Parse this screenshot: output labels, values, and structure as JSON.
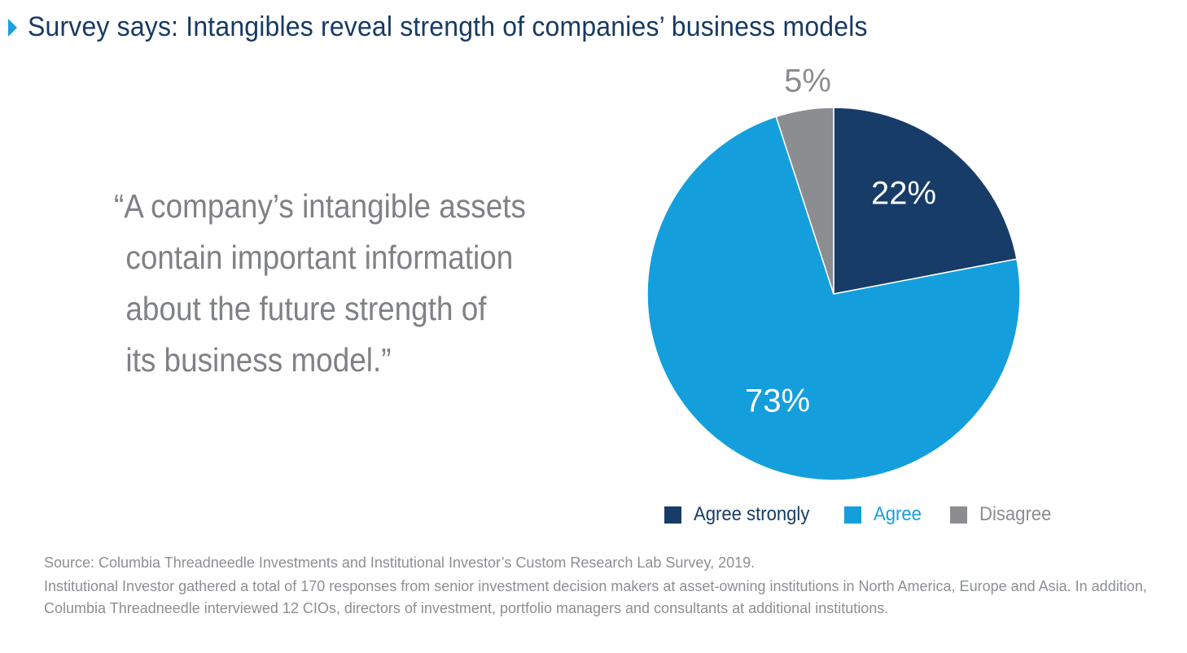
{
  "title": "Survey says: Intangibles reveal strength of companies’ business models",
  "quote_lines": [
    "“A company’s intangible assets",
    "contain important information",
    "about the future strength of",
    "its business model.”"
  ],
  "colors": {
    "title": "#163a63",
    "marker": "#1ea0dc",
    "quote": "#7f8185",
    "source": "#8c8f93"
  },
  "chart_data": {
    "type": "pie",
    "title": "",
    "legend_position": "bottom",
    "series": [
      {
        "name": "Agree strongly",
        "value": 22,
        "label": "22%",
        "color": "#173c68",
        "label_color": "#ffffff",
        "legend_text_color": "#173c68"
      },
      {
        "name": "Agree",
        "value": 73,
        "label": "73%",
        "color": "#149fdc",
        "label_color": "#ffffff",
        "legend_text_color": "#149fdc"
      },
      {
        "name": "Disagree",
        "value": 5,
        "label": "5%",
        "color": "#8b8d91",
        "label_color": "#8b8d91",
        "legend_text_color": "#8b8d91"
      }
    ]
  },
  "source": {
    "citation": "Source: Columbia Threadneedle Investments and Institutional Investor’s Custom Research Lab Survey, 2019.",
    "notes": "Institutional Investor gathered a total of 170 responses from senior investment decision makers at asset-owning institutions in North America, Europe and Asia. In addition, Columbia Threadneedle interviewed 12 CIOs, directors of investment, portfolio managers and consultants at additional institutions."
  }
}
